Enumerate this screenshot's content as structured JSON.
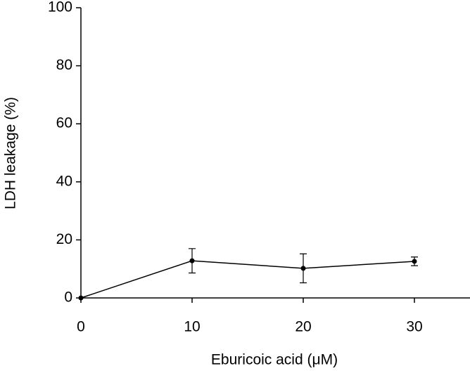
{
  "chart_data": {
    "type": "line",
    "xlabel": "Eburicoic acid (μM)",
    "ylabel": "LDH leakage (%)",
    "x": [
      0,
      10,
      20,
      30
    ],
    "values": [
      0,
      12.8,
      10.2,
      12.6
    ],
    "errors": [
      0,
      4.2,
      5,
      1.5
    ],
    "color": "#000000",
    "xlim": [
      0,
      35
    ],
    "xticks": [
      0,
      10,
      20,
      30
    ],
    "ylim": [
      0,
      100
    ],
    "yticks": [
      0,
      20,
      40,
      60,
      80,
      100
    ],
    "grid": false
  }
}
